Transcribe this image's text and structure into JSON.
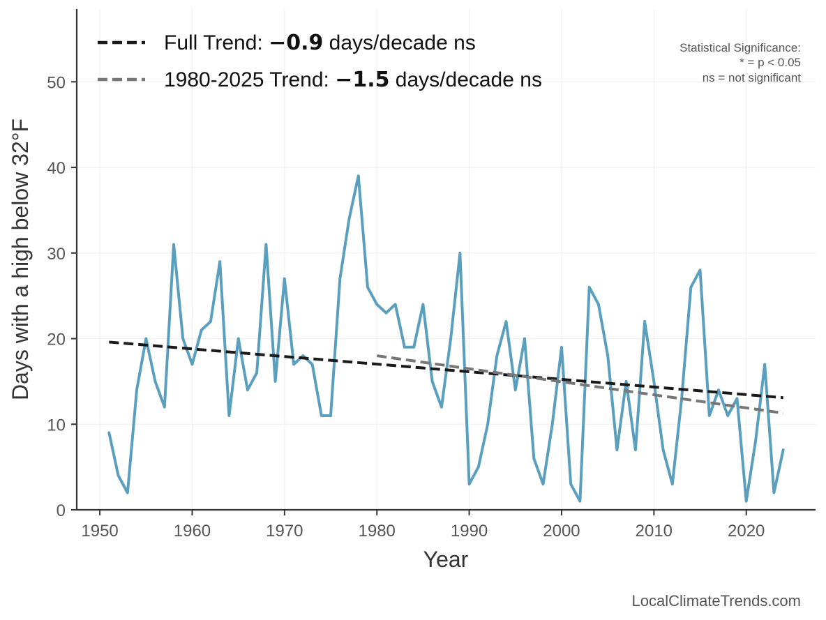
{
  "chart_data": {
    "type": "line",
    "xlabel": "Year",
    "ylabel": "Days with a high below 32°F",
    "xlim": [
      1947.5,
      2027.5
    ],
    "ylim": [
      0,
      58.5
    ],
    "x_ticks": [
      1950,
      1960,
      1970,
      1980,
      1990,
      2000,
      2010,
      2020
    ],
    "y_ticks": [
      0,
      10,
      20,
      30,
      40,
      50
    ],
    "grid": true,
    "legend_position": "top-left",
    "series": [
      {
        "name": "",
        "color": "#5a9fbd",
        "x": [
          1951,
          1952,
          1953,
          1954,
          1955,
          1956,
          1957,
          1958,
          1959,
          1960,
          1961,
          1962,
          1963,
          1964,
          1965,
          1966,
          1967,
          1968,
          1969,
          1970,
          1971,
          1972,
          1973,
          1974,
          1975,
          1976,
          1977,
          1978,
          1979,
          1980,
          1981,
          1982,
          1983,
          1984,
          1985,
          1986,
          1987,
          1988,
          1989,
          1990,
          1991,
          1992,
          1993,
          1994,
          1995,
          1996,
          1997,
          1998,
          1999,
          2000,
          2001,
          2002,
          2003,
          2004,
          2005,
          2006,
          2007,
          2008,
          2009,
          2010,
          2011,
          2012,
          2013,
          2014,
          2015,
          2016,
          2017,
          2018,
          2019,
          2020,
          2021,
          2022,
          2023,
          2024
        ],
        "y": [
          9,
          4,
          2,
          14,
          20,
          15,
          12,
          31,
          20,
          17,
          21,
          22,
          29,
          11,
          20,
          14,
          16,
          31,
          15,
          27,
          17,
          18,
          17,
          11,
          11,
          27,
          34,
          39,
          26,
          24,
          23,
          24,
          19,
          19,
          24,
          15,
          12,
          20,
          30,
          3,
          5,
          10,
          18,
          22,
          14,
          20,
          6,
          3,
          10,
          19,
          3,
          1,
          26,
          24,
          18,
          7,
          15,
          7,
          22,
          15,
          7,
          3,
          13,
          26,
          28,
          11,
          14,
          11,
          13,
          1,
          8,
          17,
          2,
          7
        ]
      }
    ],
    "trends": [
      {
        "legend_prefix": "Full Trend: ",
        "value": "−0.9",
        "legend_suffix": " days/decade ns",
        "color": "#1a1a1a",
        "x": [
          1951,
          2024
        ],
        "y": [
          19.6,
          13.1
        ]
      },
      {
        "legend_prefix": "1980-2025 Trend: ",
        "value": "−1.5",
        "legend_suffix": " days/decade ns",
        "color": "#777777",
        "x": [
          1980,
          2024
        ],
        "y": [
          18.0,
          11.3
        ]
      }
    ],
    "annotations": [
      "Statistical Significance:",
      "* = p < 0.05",
      "ns = not significant"
    ],
    "credit": "LocalClimateTrends.com"
  }
}
